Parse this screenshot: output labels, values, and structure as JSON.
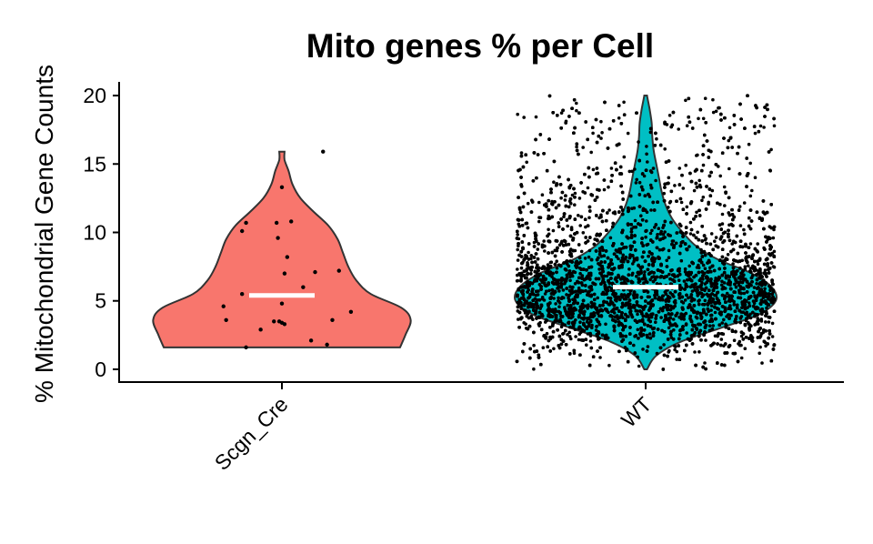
{
  "chart_data": {
    "type": "violin",
    "title": "Mito genes % per Cell",
    "xlabel": "",
    "ylabel": "% Mitochondrial Gene Counts",
    "ylim": [
      -1,
      21
    ],
    "yticks": [
      0,
      5,
      10,
      15,
      20
    ],
    "grid": false,
    "legend": "none",
    "categories": [
      "Scgn_Cre",
      "WT"
    ],
    "colors": {
      "Scgn_Cre": "#F8766D",
      "WT": "#00BFC4"
    },
    "series": [
      {
        "category": "Scgn_Cre",
        "median": 5.4,
        "min": 1.6,
        "max": 15.9,
        "density_profile": [
          [
            1.6,
            0.89
          ],
          [
            2.5,
            0.93
          ],
          [
            3.6,
            0.97
          ],
          [
            4.5,
            0.9
          ],
          [
            5.5,
            0.67
          ],
          [
            6.5,
            0.56
          ],
          [
            7.5,
            0.5
          ],
          [
            8.5,
            0.46
          ],
          [
            9.5,
            0.42
          ],
          [
            10.5,
            0.35
          ],
          [
            11.5,
            0.24
          ],
          [
            12.5,
            0.14
          ],
          [
            13.5,
            0.08
          ],
          [
            14.5,
            0.05
          ],
          [
            15.3,
            0.02
          ],
          [
            15.9,
            0.02
          ]
        ],
        "points": [
          [
            -0.27,
            1.6
          ],
          [
            -0.16,
            2.9
          ],
          [
            -0.42,
            3.6
          ],
          [
            -0.44,
            4.6
          ],
          [
            -0.3,
            5.5
          ],
          [
            -0.3,
            10.1
          ],
          [
            -0.27,
            10.7
          ],
          [
            -0.06,
            3.5
          ],
          [
            -0.02,
            3.5
          ],
          [
            0.0,
            3.4
          ],
          [
            0.02,
            3.3
          ],
          [
            0.0,
            4.8
          ],
          [
            -0.04,
            10.7
          ],
          [
            -0.03,
            9.6
          ],
          [
            0.04,
            8.2
          ],
          [
            0.02,
            7.0
          ],
          [
            0.0,
            13.3
          ],
          [
            0.07,
            10.8
          ],
          [
            0.16,
            6.0
          ],
          [
            0.25,
            7.1
          ],
          [
            0.22,
            2.1
          ],
          [
            0.34,
            1.8
          ],
          [
            0.38,
            3.6
          ],
          [
            0.43,
            7.2
          ],
          [
            0.52,
            4.2
          ],
          [
            0.31,
            15.9
          ]
        ]
      },
      {
        "category": "WT",
        "median": 6.0,
        "min": 0.0,
        "max": 20.0,
        "density_profile": [
          [
            0,
            0.01
          ],
          [
            1,
            0.08
          ],
          [
            2,
            0.26
          ],
          [
            3,
            0.56
          ],
          [
            4,
            0.85
          ],
          [
            5,
            0.98
          ],
          [
            6,
            0.95
          ],
          [
            7,
            0.8
          ],
          [
            8,
            0.55
          ],
          [
            9,
            0.38
          ],
          [
            10,
            0.28
          ],
          [
            11,
            0.2
          ],
          [
            12,
            0.15
          ],
          [
            13,
            0.12
          ],
          [
            14,
            0.1
          ],
          [
            15,
            0.08
          ],
          [
            16,
            0.06
          ],
          [
            17,
            0.05
          ],
          [
            18,
            0.045
          ],
          [
            19,
            0.03
          ],
          [
            20,
            0.01
          ]
        ],
        "n_points": 7000
      }
    ]
  }
}
